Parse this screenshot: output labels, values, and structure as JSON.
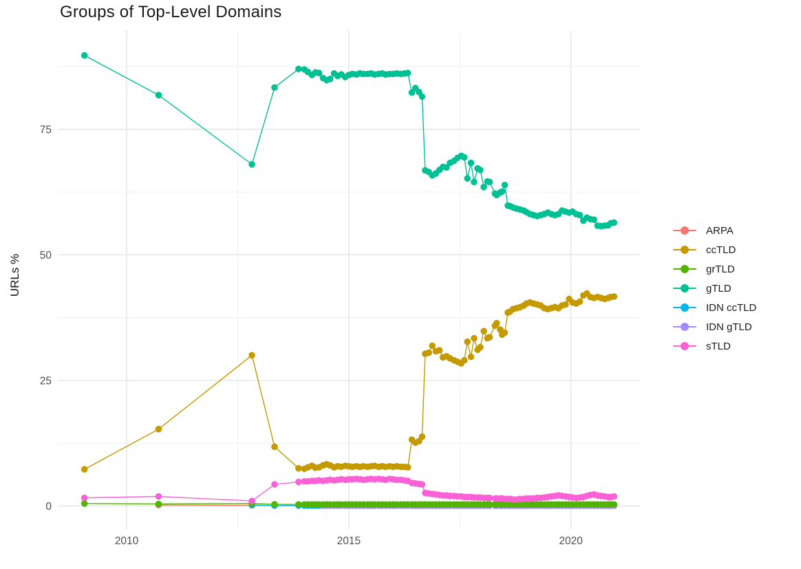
{
  "chart_data": {
    "type": "line",
    "title": "Groups of Top-Level Domains",
    "xlabel": "",
    "ylabel": "URLs %",
    "legend_position": "right",
    "grid_on": true,
    "xlim": [
      2008.45,
      2021.57
    ],
    "ylim": [
      -4.6,
      94.7
    ],
    "x_ticks": [
      {
        "v": 2010,
        "label": "2010"
      },
      {
        "v": 2015,
        "label": "2015"
      },
      {
        "v": 2020,
        "label": "2020"
      }
    ],
    "y_ticks": [
      {
        "v": 0,
        "label": "0"
      },
      {
        "v": 25,
        "label": "25"
      },
      {
        "v": 50,
        "label": "50"
      },
      {
        "v": 75,
        "label": "75"
      }
    ],
    "grid": {
      "x_major": [
        2010,
        2015,
        2020
      ],
      "x_minor": [
        2012.5,
        2017.5
      ],
      "y_major": [
        0,
        25,
        50,
        75
      ],
      "y_minor": [
        12.5,
        37.5,
        62.5,
        87.5
      ],
      "major_color": "#e3e3e3",
      "minor_color": "#f1f1f1"
    },
    "x_common": [
      2009.05,
      2010.72,
      2012.82,
      2013.33,
      2013.87,
      2014.0,
      2014.08,
      2014.17,
      2014.25,
      2014.33,
      2014.42,
      2014.5,
      2014.58,
      2014.67,
      2014.75,
      2014.83,
      2014.92,
      2015.0,
      2015.08,
      2015.17,
      2015.25,
      2015.33,
      2015.42,
      2015.5,
      2015.58,
      2015.67,
      2015.75,
      2015.83,
      2015.92,
      2016.0,
      2016.08,
      2016.17,
      2016.25,
      2016.33,
      2016.42,
      2016.5,
      2016.58,
      2016.65,
      2016.72,
      2016.8,
      2016.88,
      2016.96,
      2017.04,
      2017.12,
      2017.2,
      2017.28,
      2017.37,
      2017.45,
      2017.53,
      2017.6,
      2017.67,
      2017.75,
      2017.82,
      2017.9,
      2017.96,
      2018.04,
      2018.12,
      2018.17,
      2018.29,
      2018.33,
      2018.41,
      2018.45,
      2018.51,
      2018.58,
      2018.63,
      2018.7,
      2018.78,
      2018.86,
      2018.94,
      2019.0,
      2019.08,
      2019.16,
      2019.24,
      2019.32,
      2019.4,
      2019.48,
      2019.56,
      2019.64,
      2019.72,
      2019.8,
      2019.88,
      2019.96,
      2020.04,
      2020.12,
      2020.2,
      2020.28,
      2020.36,
      2020.44,
      2020.52,
      2020.6,
      2020.68,
      2020.76,
      2020.84,
      2020.9,
      2020.97
    ],
    "draw_order": [
      "ARPA",
      "IDN ccTLD",
      "IDN gTLD",
      "grTLD",
      "sTLD",
      "ccTLD",
      "gTLD"
    ],
    "series": [
      {
        "name": "ARPA",
        "color": "#F8766D",
        "x_offset": 1,
        "y": [
          0.2,
          0.13,
          0.1,
          0.08
        ]
      },
      {
        "name": "ccTLD",
        "color": "#C49A00",
        "x_offset": 0,
        "y": [
          7.3,
          15.3,
          30.0,
          11.8,
          7.5,
          7.4,
          7.7,
          8.0,
          7.6,
          7.7,
          8.1,
          8.3,
          8.1,
          7.7,
          7.9,
          7.8,
          8.0,
          7.9,
          7.8,
          7.9,
          7.8,
          7.9,
          7.8,
          7.9,
          8.0,
          7.8,
          7.9,
          7.8,
          7.9,
          7.8,
          7.9,
          7.8,
          7.8,
          7.7,
          13.2,
          12.6,
          12.9,
          13.8,
          30.3,
          30.5,
          31.9,
          30.8,
          31.0,
          29.6,
          29.8,
          29.4,
          29.0,
          28.7,
          28.4,
          29.0,
          32.7,
          29.7,
          33.4,
          31.1,
          31.6,
          34.8,
          33.4,
          33.6,
          35.9,
          36.4,
          35.1,
          34.1,
          34.5,
          38.5,
          38.7,
          39.2,
          39.4,
          39.6,
          39.9,
          40.3,
          40.5,
          40.3,
          40.1,
          39.9,
          39.4,
          39.2,
          39.4,
          39.6,
          39.4,
          39.9,
          40.1,
          41.2,
          40.5,
          40.3,
          40.7,
          41.9,
          42.3,
          41.6,
          41.4,
          41.6,
          41.4,
          41.2,
          41.4,
          41.6,
          41.7
        ]
      },
      {
        "name": "grTLD",
        "color": "#53B400",
        "x_offset": 0,
        "y": [
          0.5,
          0.4,
          0.5,
          0.35,
          0.3
        ],
        "y_repeat": {
          "value": 0.3,
          "count": 90
        }
      },
      {
        "name": "gTLD",
        "color": "#00C094",
        "x_offset": 0,
        "y": [
          89.7,
          81.8,
          68.0,
          83.3,
          87.0,
          86.9,
          86.4,
          85.8,
          86.3,
          86.2,
          85.2,
          84.8,
          85.0,
          86.1,
          85.6,
          85.9,
          85.4,
          85.8,
          86.0,
          85.9,
          86.1,
          86.0,
          86.0,
          86.1,
          85.9,
          86.0,
          86.1,
          85.9,
          86.0,
          86.0,
          86.1,
          86.0,
          86.1,
          86.2,
          82.3,
          83.2,
          82.4,
          81.5,
          66.8,
          66.5,
          65.8,
          66.2,
          66.9,
          67.5,
          67.4,
          68.3,
          68.7,
          69.3,
          69.7,
          69.4,
          65.2,
          68.3,
          64.5,
          67.2,
          66.9,
          63.5,
          64.6,
          64.5,
          62.2,
          61.9,
          62.4,
          62.6,
          63.9,
          59.8,
          59.7,
          59.4,
          59.2,
          59.0,
          58.8,
          58.5,
          58.1,
          57.9,
          57.7,
          57.9,
          58.1,
          58.4,
          58.1,
          57.9,
          58.1,
          58.8,
          58.6,
          58.4,
          58.6,
          58.1,
          57.9,
          56.8,
          57.4,
          57.1,
          57.0,
          55.8,
          55.7,
          55.8,
          55.9,
          56.3,
          56.4
        ]
      },
      {
        "name": "IDN ccTLD",
        "color": "#00B6EB",
        "x_offset": 2,
        "y": [
          0.2,
          0.1,
          0.1
        ],
        "y_repeat": {
          "value": 0.08,
          "count": 90
        }
      },
      {
        "name": "IDN gTLD",
        "color": "#A58AFF",
        "x_offset": 10,
        "y": [],
        "y_repeat": {
          "value": 0.1,
          "count": 85
        }
      },
      {
        "name": "sTLD",
        "color": "#FB61D7",
        "x_offset": 0,
        "y": [
          1.6,
          1.9,
          1.0,
          4.3,
          4.8,
          4.9,
          4.9,
          5.0,
          5.0,
          5.1,
          5.0,
          5.1,
          5.2,
          5.1,
          5.2,
          5.3,
          5.2,
          5.3,
          5.3,
          5.4,
          5.3,
          5.2,
          5.3,
          5.4,
          5.3,
          5.4,
          5.3,
          5.2,
          5.4,
          5.3,
          5.2,
          5.2,
          5.1,
          5.0,
          4.6,
          4.5,
          4.4,
          4.3,
          2.6,
          2.5,
          2.4,
          2.3,
          2.2,
          2.1,
          2.1,
          2.0,
          2.0,
          1.9,
          1.9,
          1.8,
          1.8,
          1.8,
          1.7,
          1.7,
          1.7,
          1.6,
          1.6,
          1.6,
          1.5,
          1.5,
          1.5,
          1.5,
          1.4,
          1.4,
          1.4,
          1.3,
          1.3,
          1.4,
          1.4,
          1.5,
          1.5,
          1.5,
          1.6,
          1.6,
          1.7,
          1.8,
          1.9,
          2.0,
          2.1,
          2.0,
          1.9,
          1.8,
          1.7,
          1.6,
          1.7,
          1.8,
          2.0,
          2.2,
          2.3,
          2.1,
          2.0,
          1.9,
          1.8,
          1.8,
          1.9
        ]
      }
    ]
  }
}
